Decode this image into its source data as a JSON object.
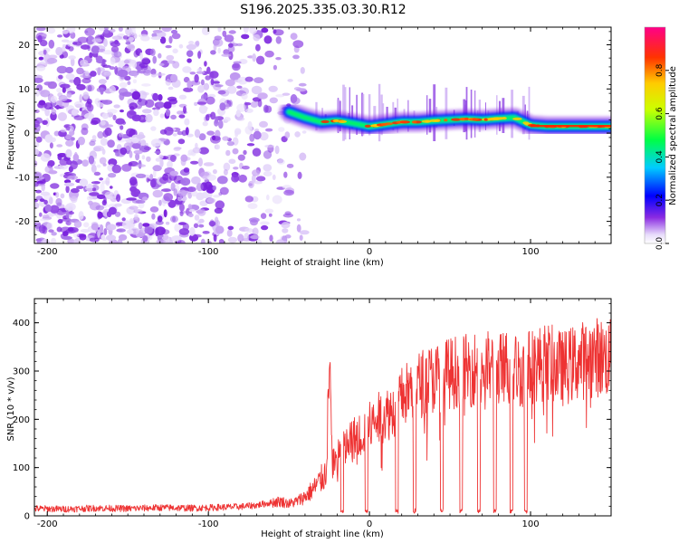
{
  "title": "S196.2025.335.03.30.R12",
  "chart_data": [
    {
      "type": "heatmap",
      "name": "spectrogram",
      "xlabel": "Height of straight line (km)",
      "ylabel": "Frequency (Hz)",
      "xlim": [
        -208,
        150
      ],
      "ylim": [
        -25,
        24
      ],
      "xticks": [
        -200,
        -100,
        0,
        100
      ],
      "yticks": [
        -20,
        -10,
        0,
        10,
        20
      ],
      "colorbar": {
        "label": "Normalized spectral amplitude",
        "range": [
          0,
          1
        ],
        "ticks": [
          0.0,
          0.2,
          0.4,
          0.6,
          0.8
        ],
        "tick_labels": [
          "0.0",
          "0.2",
          "0.4",
          "0.6",
          "0.8"
        ]
      },
      "dominant_frequency_track": {
        "x": [
          -50,
          -40,
          -30,
          -20,
          -10,
          0,
          10,
          20,
          30,
          40,
          50,
          60,
          70,
          80,
          90,
          100,
          110,
          120,
          130,
          140,
          150
        ],
        "y": [
          4.8,
          3.5,
          2.5,
          2.8,
          2.2,
          1.5,
          2.0,
          2.5,
          2.5,
          2.8,
          3.0,
          3.2,
          3.0,
          3.3,
          3.5,
          1.8,
          1.5,
          1.5,
          1.5,
          1.5,
          1.5
        ]
      },
      "noise_region_x": [
        -208,
        -40
      ]
    },
    {
      "type": "line",
      "name": "snr",
      "xlabel": "Height of straight line (km)",
      "ylabel": "SNR (10 * v/v)",
      "xlim": [
        -208,
        150
      ],
      "ylim": [
        0,
        450
      ],
      "xticks": [
        -200,
        -100,
        0,
        100
      ],
      "yticks": [
        0,
        100,
        200,
        300,
        400
      ],
      "series": [
        {
          "name": "SNR",
          "color": "#ee3333",
          "x": [
            -208,
            -190,
            -170,
            -150,
            -130,
            -110,
            -90,
            -80,
            -70,
            -60,
            -55,
            -50,
            -45,
            -40,
            -35,
            -30,
            -27,
            -25,
            -23,
            -20,
            -15,
            -10,
            -5,
            0,
            5,
            10,
            15,
            20,
            25,
            30,
            35,
            40,
            45,
            50,
            55,
            60,
            65,
            70,
            75,
            80,
            85,
            90,
            95,
            100,
            110,
            120,
            130,
            140,
            150
          ],
          "y": [
            15,
            14,
            16,
            15,
            17,
            16,
            18,
            19,
            22,
            28,
            30,
            25,
            30,
            40,
            55,
            75,
            90,
            315,
            110,
            120,
            140,
            160,
            170,
            185,
            200,
            210,
            220,
            245,
            260,
            270,
            280,
            285,
            290,
            295,
            300,
            300,
            305,
            310,
            305,
            300,
            310,
            305,
            300,
            310,
            320,
            305,
            320,
            330,
            325
          ],
          "dropouts_x": [
            -17,
            -2,
            17,
            28,
            45,
            57,
            68,
            78,
            88,
            97
          ]
        }
      ]
    }
  ]
}
